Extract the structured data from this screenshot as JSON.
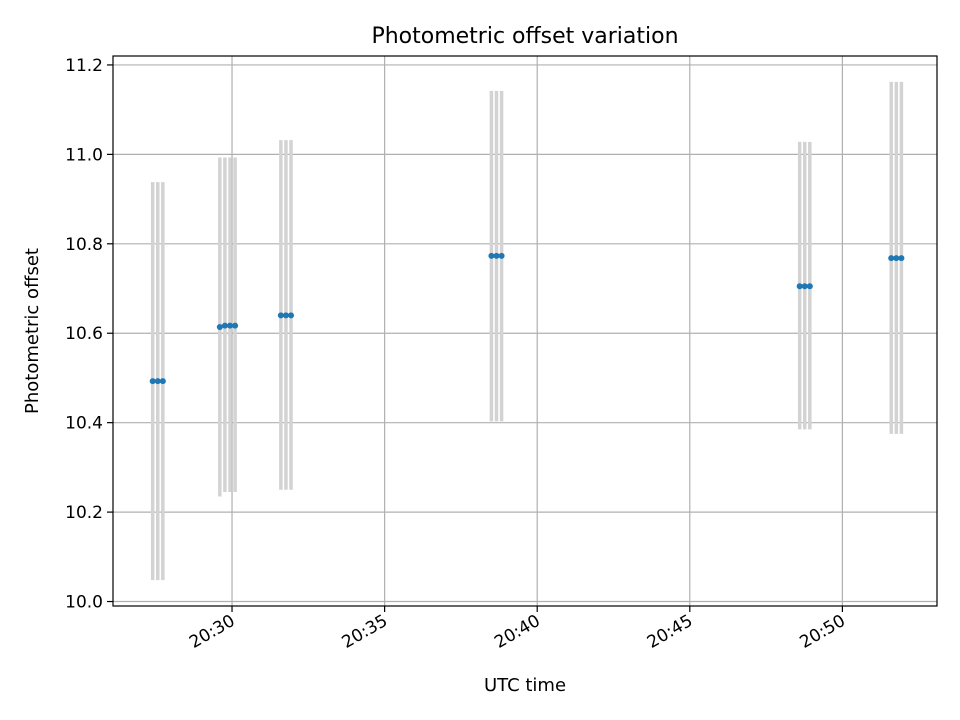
{
  "chart_data": {
    "type": "scatter",
    "title": "Photometric offset variation",
    "xlabel": "UTC time",
    "ylabel": "Photometric offset",
    "xlim": [
      "20:26:06",
      "20:53:06"
    ],
    "ylim": [
      9.99,
      11.22
    ],
    "x_ticks": [
      "20:30",
      "20:35",
      "20:40",
      "20:45",
      "20:50"
    ],
    "y_ticks": [
      "10.0",
      "10.2",
      "10.4",
      "10.6",
      "10.8",
      "11.0",
      "11.2"
    ],
    "grid": true,
    "marker_color": "#1f77b4",
    "errorbar_color": "#d3d3d3",
    "points": [
      {
        "x": "20:27:24",
        "y": 10.493,
        "ylow": 10.048,
        "yhigh": 10.938
      },
      {
        "x": "20:27:34",
        "y": 10.493,
        "ylow": 10.048,
        "yhigh": 10.938
      },
      {
        "x": "20:27:44",
        "y": 10.493,
        "ylow": 10.048,
        "yhigh": 10.938
      },
      {
        "x": "20:29:36",
        "y": 10.614,
        "ylow": 10.235,
        "yhigh": 10.993
      },
      {
        "x": "20:29:46",
        "y": 10.617,
        "ylow": 10.245,
        "yhigh": 10.993
      },
      {
        "x": "20:29:56",
        "y": 10.617,
        "ylow": 10.245,
        "yhigh": 10.993
      },
      {
        "x": "20:30:06",
        "y": 10.617,
        "ylow": 10.245,
        "yhigh": 10.993
      },
      {
        "x": "20:31:36",
        "y": 10.64,
        "ylow": 10.25,
        "yhigh": 11.032
      },
      {
        "x": "20:31:46",
        "y": 10.64,
        "ylow": 10.25,
        "yhigh": 11.032
      },
      {
        "x": "20:31:56",
        "y": 10.64,
        "ylow": 10.25,
        "yhigh": 11.032
      },
      {
        "x": "20:38:30",
        "y": 10.773,
        "ylow": 10.403,
        "yhigh": 11.142
      },
      {
        "x": "20:38:40",
        "y": 10.773,
        "ylow": 10.403,
        "yhigh": 11.142
      },
      {
        "x": "20:38:50",
        "y": 10.773,
        "ylow": 10.403,
        "yhigh": 11.142
      },
      {
        "x": "20:48:36",
        "y": 10.705,
        "ylow": 10.385,
        "yhigh": 11.028
      },
      {
        "x": "20:48:46",
        "y": 10.705,
        "ylow": 10.385,
        "yhigh": 11.028
      },
      {
        "x": "20:48:56",
        "y": 10.705,
        "ylow": 10.385,
        "yhigh": 11.028
      },
      {
        "x": "20:51:36",
        "y": 10.768,
        "ylow": 10.375,
        "yhigh": 11.162
      },
      {
        "x": "20:51:46",
        "y": 10.768,
        "ylow": 10.375,
        "yhigh": 11.162
      },
      {
        "x": "20:51:56",
        "y": 10.768,
        "ylow": 10.375,
        "yhigh": 11.162
      }
    ]
  }
}
